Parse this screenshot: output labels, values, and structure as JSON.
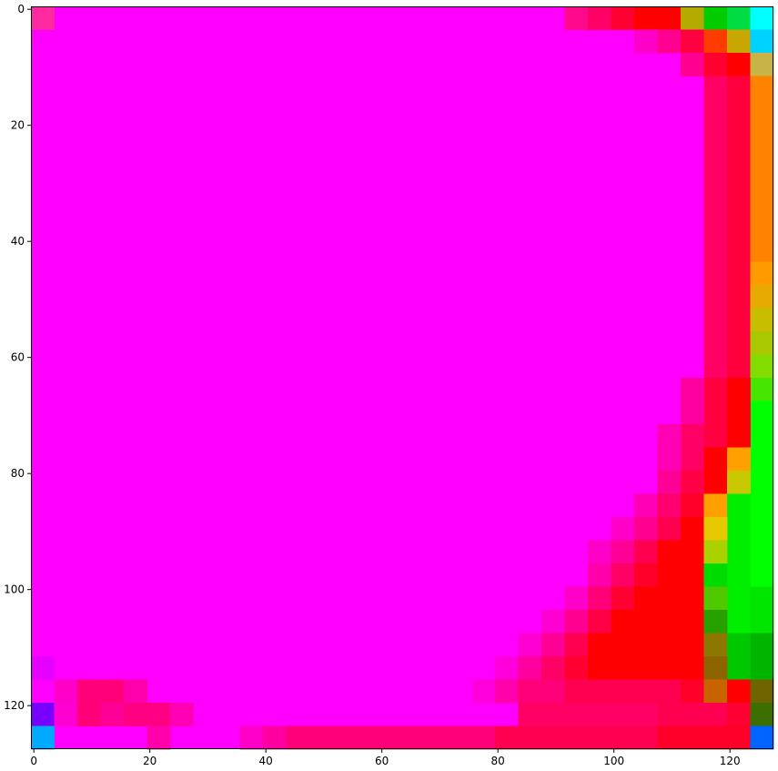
{
  "chart_data": {
    "type": "heatmap",
    "title": "",
    "xlabel": "",
    "ylabel": "",
    "xlim": [
      -0.5,
      127.5
    ],
    "ylim": [
      127.5,
      -0.5
    ],
    "x_ticks": [
      0,
      20,
      40,
      60,
      80,
      100,
      120
    ],
    "x_tick_labels": [
      "0",
      "20",
      "40",
      "60",
      "80",
      "100",
      "120"
    ],
    "y_ticks": [
      0,
      20,
      40,
      60,
      80,
      100,
      120
    ],
    "y_tick_labels": [
      "0",
      "20",
      "40",
      "60",
      "80",
      "100",
      "120"
    ],
    "grid": false,
    "legend": "none",
    "background_color": "#ff00ff",
    "regions": [
      {
        "x0": 0,
        "y0": 0,
        "x1": 4,
        "y1": 4,
        "color": "#ff2aa0"
      },
      {
        "x0": 92,
        "y0": 0,
        "x1": 96,
        "y1": 4,
        "color": "#ff0a8c"
      },
      {
        "x0": 96,
        "y0": 0,
        "x1": 100,
        "y1": 4,
        "color": "#ff0064"
      },
      {
        "x0": 100,
        "y0": 0,
        "x1": 104,
        "y1": 4,
        "color": "#ff0032"
      },
      {
        "x0": 104,
        "y0": 0,
        "x1": 112,
        "y1": 4,
        "color": "#ff0000"
      },
      {
        "x0": 112,
        "y0": 0,
        "x1": 116,
        "y1": 4,
        "color": "#b4aa00"
      },
      {
        "x0": 116,
        "y0": 0,
        "x1": 120,
        "y1": 4,
        "color": "#00cc00"
      },
      {
        "x0": 120,
        "y0": 0,
        "x1": 124,
        "y1": 4,
        "color": "#00dd44"
      },
      {
        "x0": 124,
        "y0": 0,
        "x1": 128,
        "y1": 4,
        "color": "#00ffff"
      },
      {
        "x0": 104,
        "y0": 4,
        "x1": 108,
        "y1": 8,
        "color": "#ff00c8"
      },
      {
        "x0": 108,
        "y0": 4,
        "x1": 112,
        "y1": 8,
        "color": "#ff0090"
      },
      {
        "x0": 112,
        "y0": 4,
        "x1": 116,
        "y1": 8,
        "color": "#ff0040"
      },
      {
        "x0": 116,
        "y0": 4,
        "x1": 120,
        "y1": 8,
        "color": "#ff3c00"
      },
      {
        "x0": 120,
        "y0": 4,
        "x1": 124,
        "y1": 8,
        "color": "#c8a800"
      },
      {
        "x0": 124,
        "y0": 4,
        "x1": 128,
        "y1": 8,
        "color": "#00d2ff"
      },
      {
        "x0": 112,
        "y0": 8,
        "x1": 116,
        "y1": 12,
        "color": "#ff0090"
      },
      {
        "x0": 116,
        "y0": 8,
        "x1": 120,
        "y1": 12,
        "color": "#ff0030"
      },
      {
        "x0": 120,
        "y0": 8,
        "x1": 124,
        "y1": 12,
        "color": "#ff0000"
      },
      {
        "x0": 124,
        "y0": 8,
        "x1": 128,
        "y1": 12,
        "color": "#c8b446"
      },
      {
        "x0": 116,
        "y0": 12,
        "x1": 120,
        "y1": 64,
        "color": "#ff0064"
      },
      {
        "x0": 120,
        "y0": 12,
        "x1": 124,
        "y1": 64,
        "color": "#ff003c"
      },
      {
        "x0": 124,
        "y0": 12,
        "x1": 128,
        "y1": 44,
        "color": "#ff8200"
      },
      {
        "x0": 124,
        "y0": 44,
        "x1": 128,
        "y1": 48,
        "color": "#ff9a00"
      },
      {
        "x0": 124,
        "y0": 48,
        "x1": 128,
        "y1": 52,
        "color": "#e6aa00"
      },
      {
        "x0": 124,
        "y0": 52,
        "x1": 128,
        "y1": 56,
        "color": "#c8be00"
      },
      {
        "x0": 124,
        "y0": 56,
        "x1": 128,
        "y1": 60,
        "color": "#aac800"
      },
      {
        "x0": 124,
        "y0": 60,
        "x1": 128,
        "y1": 64,
        "color": "#82dc00"
      },
      {
        "x0": 124,
        "y0": 64,
        "x1": 128,
        "y1": 68,
        "color": "#46e600"
      },
      {
        "x0": 124,
        "y0": 68,
        "x1": 128,
        "y1": 100,
        "color": "#00ff00"
      },
      {
        "x0": 116,
        "y0": 64,
        "x1": 120,
        "y1": 76,
        "color": "#ff0040"
      },
      {
        "x0": 120,
        "y0": 64,
        "x1": 124,
        "y1": 76,
        "color": "#ff0000"
      },
      {
        "x0": 112,
        "y0": 64,
        "x1": 116,
        "y1": 72,
        "color": "#ff00a0"
      },
      {
        "x0": 112,
        "y0": 72,
        "x1": 116,
        "y1": 80,
        "color": "#ff0064"
      },
      {
        "x0": 108,
        "y0": 72,
        "x1": 112,
        "y1": 80,
        "color": "#ff00b4"
      },
      {
        "x0": 116,
        "y0": 76,
        "x1": 120,
        "y1": 80,
        "color": "#ff0000"
      },
      {
        "x0": 120,
        "y0": 76,
        "x1": 124,
        "y1": 80,
        "color": "#ffa000"
      },
      {
        "x0": 116,
        "y0": 80,
        "x1": 120,
        "y1": 84,
        "color": "#ff0000"
      },
      {
        "x0": 120,
        "y0": 80,
        "x1": 124,
        "y1": 84,
        "color": "#c8c800"
      },
      {
        "x0": 108,
        "y0": 80,
        "x1": 112,
        "y1": 84,
        "color": "#ff0096"
      },
      {
        "x0": 112,
        "y0": 80,
        "x1": 116,
        "y1": 84,
        "color": "#ff0046"
      },
      {
        "x0": 104,
        "y0": 84,
        "x1": 108,
        "y1": 88,
        "color": "#ff00b4"
      },
      {
        "x0": 108,
        "y0": 84,
        "x1": 112,
        "y1": 88,
        "color": "#ff006e"
      },
      {
        "x0": 112,
        "y0": 84,
        "x1": 116,
        "y1": 88,
        "color": "#ff0028"
      },
      {
        "x0": 116,
        "y0": 84,
        "x1": 120,
        "y1": 88,
        "color": "#ffa000"
      },
      {
        "x0": 120,
        "y0": 84,
        "x1": 124,
        "y1": 124,
        "color": "#00ee00"
      },
      {
        "x0": 100,
        "y0": 88,
        "x1": 104,
        "y1": 92,
        "color": "#ff00c8"
      },
      {
        "x0": 104,
        "y0": 88,
        "x1": 108,
        "y1": 92,
        "color": "#ff0090"
      },
      {
        "x0": 108,
        "y0": 88,
        "x1": 112,
        "y1": 92,
        "color": "#ff0050"
      },
      {
        "x0": 112,
        "y0": 88,
        "x1": 116,
        "y1": 92,
        "color": "#ff0000"
      },
      {
        "x0": 116,
        "y0": 88,
        "x1": 120,
        "y1": 92,
        "color": "#e6c800"
      },
      {
        "x0": 96,
        "y0": 92,
        "x1": 100,
        "y1": 96,
        "color": "#ff00c8"
      },
      {
        "x0": 100,
        "y0": 92,
        "x1": 104,
        "y1": 96,
        "color": "#ff0096"
      },
      {
        "x0": 104,
        "y0": 92,
        "x1": 108,
        "y1": 96,
        "color": "#ff0050"
      },
      {
        "x0": 108,
        "y0": 92,
        "x1": 116,
        "y1": 96,
        "color": "#ff0000"
      },
      {
        "x0": 116,
        "y0": 92,
        "x1": 120,
        "y1": 96,
        "color": "#aad200"
      },
      {
        "x0": 96,
        "y0": 96,
        "x1": 100,
        "y1": 100,
        "color": "#ff00aa"
      },
      {
        "x0": 100,
        "y0": 96,
        "x1": 104,
        "y1": 100,
        "color": "#ff0064"
      },
      {
        "x0": 104,
        "y0": 96,
        "x1": 108,
        "y1": 100,
        "color": "#ff0028"
      },
      {
        "x0": 108,
        "y0": 96,
        "x1": 116,
        "y1": 100,
        "color": "#ff0000"
      },
      {
        "x0": 116,
        "y0": 96,
        "x1": 120,
        "y1": 100,
        "color": "#00dc00"
      },
      {
        "x0": 92,
        "y0": 100,
        "x1": 96,
        "y1": 104,
        "color": "#ff00c8"
      },
      {
        "x0": 96,
        "y0": 100,
        "x1": 100,
        "y1": 104,
        "color": "#ff0078"
      },
      {
        "x0": 100,
        "y0": 100,
        "x1": 104,
        "y1": 104,
        "color": "#ff0032"
      },
      {
        "x0": 104,
        "y0": 100,
        "x1": 116,
        "y1": 104,
        "color": "#ff0000"
      },
      {
        "x0": 116,
        "y0": 100,
        "x1": 120,
        "y1": 104,
        "color": "#50c800"
      },
      {
        "x0": 124,
        "y0": 100,
        "x1": 128,
        "y1": 108,
        "color": "#00e600"
      },
      {
        "x0": 88,
        "y0": 104,
        "x1": 92,
        "y1": 108,
        "color": "#ff00d2"
      },
      {
        "x0": 92,
        "y0": 104,
        "x1": 96,
        "y1": 108,
        "color": "#ff0090"
      },
      {
        "x0": 96,
        "y0": 104,
        "x1": 100,
        "y1": 108,
        "color": "#ff0046"
      },
      {
        "x0": 100,
        "y0": 104,
        "x1": 116,
        "y1": 108,
        "color": "#ff0000"
      },
      {
        "x0": 116,
        "y0": 104,
        "x1": 120,
        "y1": 108,
        "color": "#28a000"
      },
      {
        "x0": 84,
        "y0": 108,
        "x1": 88,
        "y1": 112,
        "color": "#ff00d2"
      },
      {
        "x0": 88,
        "y0": 108,
        "x1": 92,
        "y1": 112,
        "color": "#ff0096"
      },
      {
        "x0": 92,
        "y0": 108,
        "x1": 96,
        "y1": 112,
        "color": "#ff0050"
      },
      {
        "x0": 96,
        "y0": 108,
        "x1": 116,
        "y1": 112,
        "color": "#ff0000"
      },
      {
        "x0": 116,
        "y0": 108,
        "x1": 120,
        "y1": 112,
        "color": "#8c7800"
      },
      {
        "x0": 124,
        "y0": 108,
        "x1": 128,
        "y1": 116,
        "color": "#00b400"
      },
      {
        "x0": 120,
        "y0": 108,
        "x1": 124,
        "y1": 116,
        "color": "#00c800"
      },
      {
        "x0": 80,
        "y0": 112,
        "x1": 84,
        "y1": 116,
        "color": "#ff00dc"
      },
      {
        "x0": 84,
        "y0": 112,
        "x1": 88,
        "y1": 116,
        "color": "#ff00a0"
      },
      {
        "x0": 88,
        "y0": 112,
        "x1": 92,
        "y1": 116,
        "color": "#ff0064"
      },
      {
        "x0": 92,
        "y0": 112,
        "x1": 96,
        "y1": 116,
        "color": "#ff0030"
      },
      {
        "x0": 96,
        "y0": 112,
        "x1": 116,
        "y1": 116,
        "color": "#ff0000"
      },
      {
        "x0": 116,
        "y0": 112,
        "x1": 120,
        "y1": 116,
        "color": "#8c6400"
      },
      {
        "x0": 0,
        "y0": 112,
        "x1": 4,
        "y1": 116,
        "color": "#e600ff"
      },
      {
        "x0": 76,
        "y0": 116,
        "x1": 80,
        "y1": 120,
        "color": "#ff00dc"
      },
      {
        "x0": 80,
        "y0": 116,
        "x1": 84,
        "y1": 120,
        "color": "#ff00aa"
      },
      {
        "x0": 84,
        "y0": 116,
        "x1": 92,
        "y1": 120,
        "color": "#ff0078"
      },
      {
        "x0": 92,
        "y0": 116,
        "x1": 112,
        "y1": 120,
        "color": "#ff0050"
      },
      {
        "x0": 112,
        "y0": 116,
        "x1": 116,
        "y1": 120,
        "color": "#ff0028"
      },
      {
        "x0": 116,
        "y0": 116,
        "x1": 120,
        "y1": 120,
        "color": "#c86400"
      },
      {
        "x0": 120,
        "y0": 116,
        "x1": 124,
        "y1": 120,
        "color": "#ff0000"
      },
      {
        "x0": 124,
        "y0": 116,
        "x1": 128,
        "y1": 120,
        "color": "#6e6400"
      },
      {
        "x0": 4,
        "y0": 116,
        "x1": 8,
        "y1": 120,
        "color": "#ff00c8"
      },
      {
        "x0": 8,
        "y0": 116,
        "x1": 16,
        "y1": 120,
        "color": "#ff0078"
      },
      {
        "x0": 16,
        "y0": 116,
        "x1": 20,
        "y1": 120,
        "color": "#ff00aa"
      },
      {
        "x0": 0,
        "y0": 120,
        "x1": 4,
        "y1": 124,
        "color": "#7800ff"
      },
      {
        "x0": 4,
        "y0": 120,
        "x1": 8,
        "y1": 124,
        "color": "#ff00d2"
      },
      {
        "x0": 8,
        "y0": 120,
        "x1": 12,
        "y1": 124,
        "color": "#ff0078"
      },
      {
        "x0": 12,
        "y0": 120,
        "x1": 16,
        "y1": 124,
        "color": "#ff0096"
      },
      {
        "x0": 16,
        "y0": 120,
        "x1": 24,
        "y1": 124,
        "color": "#ff0082"
      },
      {
        "x0": 24,
        "y0": 120,
        "x1": 28,
        "y1": 124,
        "color": "#ff00b4"
      },
      {
        "x0": 84,
        "y0": 120,
        "x1": 108,
        "y1": 124,
        "color": "#ff0064"
      },
      {
        "x0": 108,
        "y0": 120,
        "x1": 120,
        "y1": 124,
        "color": "#ff0050"
      },
      {
        "x0": 120,
        "y0": 120,
        "x1": 124,
        "y1": 124,
        "color": "#ff0032"
      },
      {
        "x0": 124,
        "y0": 120,
        "x1": 128,
        "y1": 124,
        "color": "#3c6e00"
      },
      {
        "x0": 0,
        "y0": 124,
        "x1": 4,
        "y1": 128,
        "color": "#00aaff"
      },
      {
        "x0": 20,
        "y0": 124,
        "x1": 24,
        "y1": 128,
        "color": "#ff00aa"
      },
      {
        "x0": 36,
        "y0": 124,
        "x1": 40,
        "y1": 128,
        "color": "#ff00c8"
      },
      {
        "x0": 40,
        "y0": 124,
        "x1": 44,
        "y1": 128,
        "color": "#ff00a0"
      },
      {
        "x0": 44,
        "y0": 124,
        "x1": 80,
        "y1": 128,
        "color": "#ff0078"
      },
      {
        "x0": 80,
        "y0": 124,
        "x1": 108,
        "y1": 128,
        "color": "#ff0050"
      },
      {
        "x0": 108,
        "y0": 124,
        "x1": 124,
        "y1": 128,
        "color": "#ff0028"
      },
      {
        "x0": 124,
        "y0": 124,
        "x1": 128,
        "y1": 128,
        "color": "#0064ff"
      }
    ]
  }
}
